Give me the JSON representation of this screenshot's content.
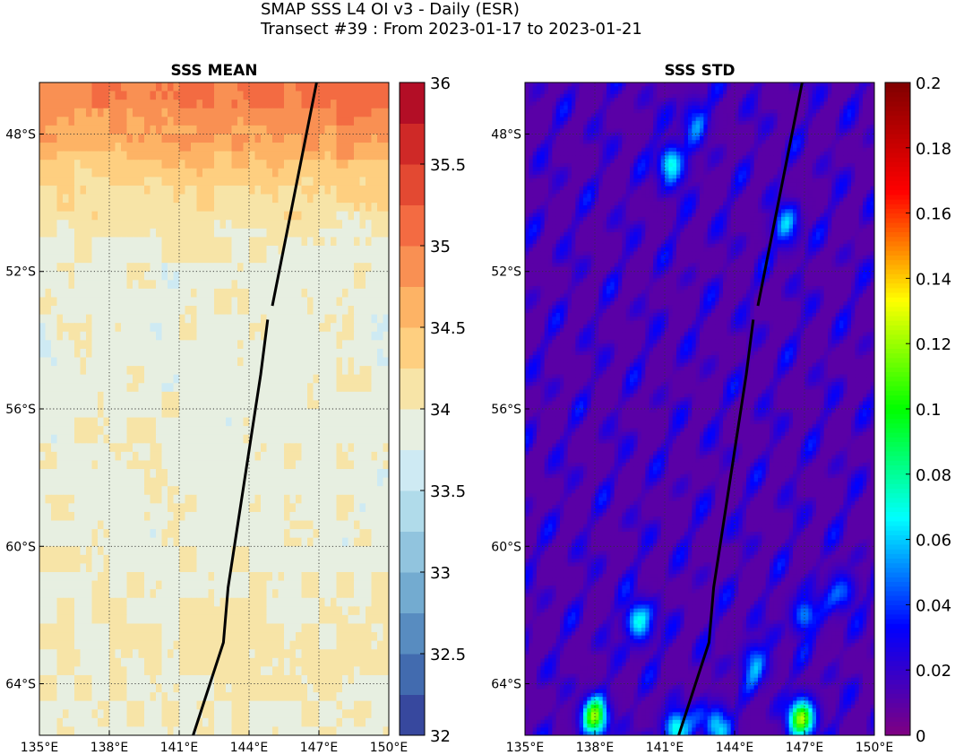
{
  "figure": {
    "title_line1": "SMAP SSS L4 OI v3 - Daily (ESR)",
    "title_line2": "Transect #39 : From 2023-01-17 to 2023-01-21"
  },
  "chart_data": [
    {
      "type": "heatmap",
      "title": "SSS MEAN",
      "xlabel": "",
      "ylabel": "",
      "xlim": [
        135,
        150
      ],
      "ylim": [
        -65.5,
        -46.5
      ],
      "x_ticks": [
        135,
        138,
        141,
        144,
        147,
        150
      ],
      "x_tick_labels": [
        "135°E",
        "138°E",
        "141°E",
        "144°E",
        "147°E",
        "150°E"
      ],
      "y_ticks": [
        -48,
        -52,
        -56,
        -60,
        -64
      ],
      "y_tick_labels": [
        "48°S",
        "52°S",
        "56°S",
        "60°S",
        "64°S"
      ],
      "grid": true,
      "colorbar": {
        "range": [
          32,
          36
        ],
        "ticks": [
          32,
          32.5,
          33,
          33.5,
          34,
          34.5,
          35,
          35.5,
          36
        ],
        "tick_labels": [
          "32",
          "32.5",
          "33",
          "33.5",
          "34",
          "34.5",
          "35",
          "35.5",
          "36"
        ],
        "colormap": "RdYlBu_r",
        "colors": [
          "#313695",
          "#4575b4",
          "#74add1",
          "#abd9e9",
          "#e0f3f8",
          "#fee090",
          "#fdae61",
          "#f46d43",
          "#d73027",
          "#a50026"
        ]
      },
      "field_summary": [
        {
          "lat": -47,
          "sss": 35.0
        },
        {
          "lat": -48,
          "sss": 34.8
        },
        {
          "lat": -49,
          "sss": 34.4
        },
        {
          "lat": -50.5,
          "sss": 34.1
        },
        {
          "lat": -52,
          "sss": 33.9
        },
        {
          "lat": -56,
          "sss": 33.9
        },
        {
          "lat": -60,
          "sss": 33.9
        },
        {
          "lat": -63,
          "sss": 34.0
        },
        {
          "lat": -65,
          "sss": 33.95
        }
      ],
      "transect": [
        {
          "lon": 141.6,
          "lat": -65.5
        },
        {
          "lon": 142.9,
          "lat": -62.8
        },
        {
          "lon": 143.1,
          "lat": -61.2
        },
        {
          "lon": 144.5,
          "lat": -55.0
        },
        {
          "lon": 144.8,
          "lat": -53.4
        },
        {
          "lon": 145.0,
          "lat": -53.0
        },
        {
          "lon": 146.9,
          "lat": -46.5
        }
      ]
    },
    {
      "type": "heatmap",
      "title": "SSS STD",
      "xlabel": "",
      "ylabel": "",
      "xlim": [
        135,
        150
      ],
      "ylim": [
        -65.5,
        -46.5
      ],
      "x_ticks": [
        135,
        138,
        141,
        144,
        147,
        150
      ],
      "x_tick_labels": [
        "135°E",
        "138°E",
        "141°E",
        "144°E",
        "147°E",
        "150°E"
      ],
      "y_ticks": [
        -48,
        -52,
        -56,
        -60,
        -64
      ],
      "y_tick_labels": [
        "48°S",
        "52°S",
        "56°S",
        "60°S",
        "64°S"
      ],
      "grid": true,
      "colorbar": {
        "range": [
          0,
          0.2
        ],
        "ticks": [
          0,
          0.02,
          0.04,
          0.06,
          0.08,
          0.1,
          0.12,
          0.14,
          0.16,
          0.18,
          0.2
        ],
        "tick_labels": [
          "0",
          "0.02",
          "0.04",
          "0.06",
          "0.08",
          "0.1",
          "0.12",
          "0.14",
          "0.16",
          "0.18",
          "0.2"
        ],
        "colormap": "jet-like",
        "colors": [
          "#800080",
          "#0000ff",
          "#00ffff",
          "#00ff00",
          "#ffff00",
          "#ff0000",
          "#800000"
        ]
      },
      "background_value": 0.01,
      "hotspots": [
        {
          "lon": 138.0,
          "lat": -65.0,
          "sss_std": 0.1
        },
        {
          "lon": 146.9,
          "lat": -65.0,
          "sss_std": 0.11
        },
        {
          "lon": 141.5,
          "lat": -65.3,
          "sss_std": 0.07
        },
        {
          "lon": 143.2,
          "lat": -65.2,
          "sss_std": 0.06
        },
        {
          "lon": 139.9,
          "lat": -62.2,
          "sss_std": 0.07
        },
        {
          "lon": 141.3,
          "lat": -48.9,
          "sss_std": 0.07
        },
        {
          "lon": 144.9,
          "lat": -63.4,
          "sss_std": 0.05
        },
        {
          "lon": 147.0,
          "lat": -62.0,
          "sss_std": 0.05
        },
        {
          "lon": 146.2,
          "lat": -50.7,
          "sss_std": 0.05
        },
        {
          "lon": 142.3,
          "lat": -47.6,
          "sss_std": 0.04
        },
        {
          "lon": 148.6,
          "lat": -61.3,
          "sss_std": 0.045
        }
      ],
      "transect": [
        {
          "lon": 141.6,
          "lat": -65.5
        },
        {
          "lon": 142.9,
          "lat": -62.8
        },
        {
          "lon": 143.1,
          "lat": -61.2
        },
        {
          "lon": 144.5,
          "lat": -55.0
        },
        {
          "lon": 144.8,
          "lat": -53.4
        },
        {
          "lon": 145.0,
          "lat": -53.0
        },
        {
          "lon": 146.9,
          "lat": -46.5
        }
      ]
    }
  ]
}
